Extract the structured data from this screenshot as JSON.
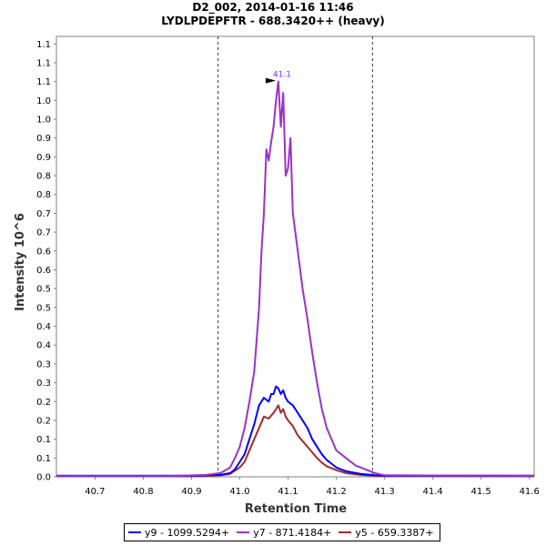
{
  "chart_data": {
    "type": "line",
    "title": "D2_002, 2014-01-16 11:46",
    "subtitle": "LYDLPDEPFTR - 688.3420++ (heavy)",
    "xlabel": "Retention Time",
    "ylabel": "Intensity 10^6",
    "xlim": [
      40.62,
      41.61
    ],
    "ylim": [
      0,
      1.17
    ],
    "x_ticks": [
      40.7,
      40.8,
      40.9,
      41.0,
      41.1,
      41.2,
      41.3,
      41.4,
      41.5,
      41.6
    ],
    "x_tick_labels": [
      "40.7",
      "40.8",
      "40.9",
      "41.0",
      "41.1",
      "41.2",
      "41.3",
      "41.4",
      "41.5",
      "41.6"
    ],
    "y_ticks": [
      0.0,
      0.05,
      0.1,
      0.15,
      0.2,
      0.25,
      0.3,
      0.35,
      0.4,
      0.45,
      0.5,
      0.55,
      0.6,
      0.65,
      0.7,
      0.75,
      0.8,
      0.85,
      0.9,
      0.95,
      1.0,
      1.05,
      1.1,
      1.15
    ],
    "y_tick_labels": [
      "0.0",
      "0.1",
      "0.1",
      "0.2",
      "0.2",
      "0.3",
      "0.3",
      "0.4",
      "0.4",
      "0.5",
      "0.5",
      "0.6",
      "0.6",
      "0.7",
      "0.7",
      "0.8",
      "0.8",
      "0.9",
      "0.9",
      "1.0",
      "1.0",
      "1.1",
      "1.1",
      "1.1"
    ],
    "vlines": [
      40.955,
      41.275
    ],
    "peak_annotation": {
      "label": "41.1",
      "x": 41.08,
      "y": 1.05,
      "color": "#8a2be2"
    },
    "series": [
      {
        "name": "y9 - 1099.5294+",
        "color": "#0000ff",
        "points": [
          [
            40.62,
            0.003
          ],
          [
            40.9,
            0.003
          ],
          [
            40.96,
            0.005
          ],
          [
            40.98,
            0.01
          ],
          [
            40.99,
            0.02
          ],
          [
            41.0,
            0.04
          ],
          [
            41.01,
            0.06
          ],
          [
            41.02,
            0.1
          ],
          [
            41.03,
            0.14
          ],
          [
            41.04,
            0.19
          ],
          [
            41.05,
            0.21
          ],
          [
            41.06,
            0.2
          ],
          [
            41.065,
            0.22
          ],
          [
            41.07,
            0.22
          ],
          [
            41.075,
            0.24
          ],
          [
            41.08,
            0.235
          ],
          [
            41.085,
            0.22
          ],
          [
            41.09,
            0.23
          ],
          [
            41.095,
            0.21
          ],
          [
            41.1,
            0.2
          ],
          [
            41.11,
            0.19
          ],
          [
            41.12,
            0.17
          ],
          [
            41.13,
            0.15
          ],
          [
            41.14,
            0.13
          ],
          [
            41.15,
            0.1
          ],
          [
            41.16,
            0.08
          ],
          [
            41.17,
            0.06
          ],
          [
            41.18,
            0.045
          ],
          [
            41.19,
            0.035
          ],
          [
            41.2,
            0.025
          ],
          [
            41.22,
            0.015
          ],
          [
            41.25,
            0.008
          ],
          [
            41.28,
            0.004
          ],
          [
            41.3,
            0.003
          ],
          [
            41.61,
            0.003
          ]
        ]
      },
      {
        "name": "y7 - 871.4184+",
        "color": "#9932cc",
        "points": [
          [
            40.62,
            0.002
          ],
          [
            40.85,
            0.002
          ],
          [
            40.93,
            0.005
          ],
          [
            40.96,
            0.01
          ],
          [
            40.98,
            0.025
          ],
          [
            40.99,
            0.05
          ],
          [
            41.0,
            0.08
          ],
          [
            41.01,
            0.13
          ],
          [
            41.02,
            0.2
          ],
          [
            41.03,
            0.28
          ],
          [
            41.04,
            0.45
          ],
          [
            41.045,
            0.6
          ],
          [
            41.05,
            0.7
          ],
          [
            41.055,
            0.87
          ],
          [
            41.06,
            0.84
          ],
          [
            41.065,
            0.89
          ],
          [
            41.07,
            0.93
          ],
          [
            41.075,
            1.0
          ],
          [
            41.08,
            1.05
          ],
          [
            41.085,
            0.93
          ],
          [
            41.09,
            1.02
          ],
          [
            41.095,
            0.8
          ],
          [
            41.1,
            0.82
          ],
          [
            41.105,
            0.9
          ],
          [
            41.11,
            0.7
          ],
          [
            41.12,
            0.6
          ],
          [
            41.13,
            0.5
          ],
          [
            41.14,
            0.42
          ],
          [
            41.15,
            0.33
          ],
          [
            41.16,
            0.25
          ],
          [
            41.17,
            0.18
          ],
          [
            41.18,
            0.13
          ],
          [
            41.19,
            0.1
          ],
          [
            41.2,
            0.07
          ],
          [
            41.22,
            0.05
          ],
          [
            41.24,
            0.03
          ],
          [
            41.26,
            0.02
          ],
          [
            41.28,
            0.01
          ],
          [
            41.3,
            0.004
          ],
          [
            41.61,
            0.003
          ]
        ]
      },
      {
        "name": "y5 - 659.3387+",
        "color": "#a52a2a",
        "points": [
          [
            40.62,
            0.002
          ],
          [
            40.9,
            0.002
          ],
          [
            40.96,
            0.004
          ],
          [
            40.98,
            0.008
          ],
          [
            41.0,
            0.025
          ],
          [
            41.01,
            0.04
          ],
          [
            41.02,
            0.07
          ],
          [
            41.03,
            0.1
          ],
          [
            41.04,
            0.13
          ],
          [
            41.05,
            0.16
          ],
          [
            41.06,
            0.155
          ],
          [
            41.07,
            0.17
          ],
          [
            41.075,
            0.18
          ],
          [
            41.08,
            0.19
          ],
          [
            41.085,
            0.17
          ],
          [
            41.09,
            0.18
          ],
          [
            41.095,
            0.16
          ],
          [
            41.1,
            0.15
          ],
          [
            41.11,
            0.135
          ],
          [
            41.12,
            0.11
          ],
          [
            41.13,
            0.095
          ],
          [
            41.14,
            0.08
          ],
          [
            41.15,
            0.065
          ],
          [
            41.16,
            0.05
          ],
          [
            41.17,
            0.038
          ],
          [
            41.18,
            0.028
          ],
          [
            41.2,
            0.018
          ],
          [
            41.22,
            0.01
          ],
          [
            41.25,
            0.005
          ],
          [
            41.28,
            0.003
          ],
          [
            41.61,
            0.002
          ]
        ]
      }
    ]
  }
}
